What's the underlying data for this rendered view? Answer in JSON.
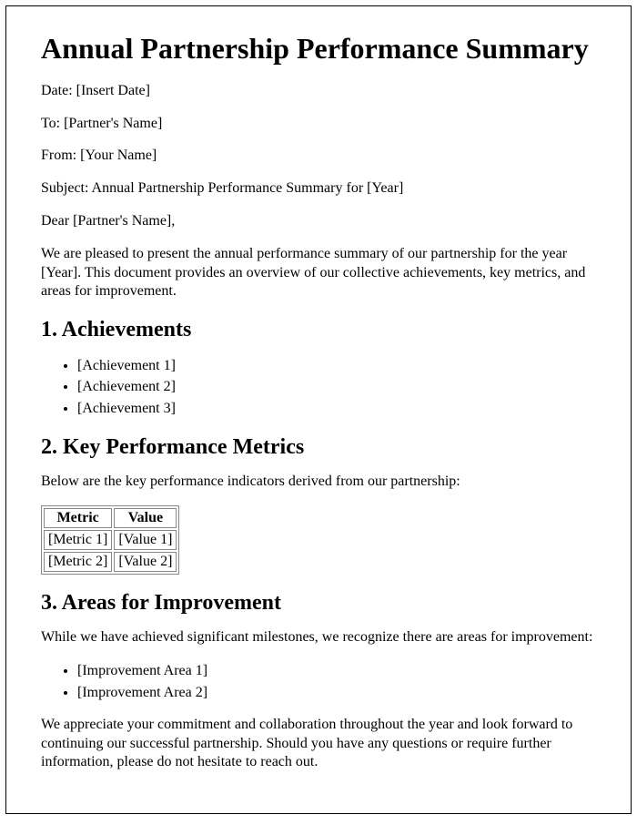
{
  "document": {
    "title": "Annual Partnership Performance Summary",
    "header": {
      "date_line": "Date: [Insert Date]",
      "to_line": "To: [Partner's Name]",
      "from_line": "From: [Your Name]",
      "subject_line": "Subject: Annual Partnership Performance Summary for [Year]",
      "salutation": "Dear [Partner's Name],"
    },
    "intro_paragraph": "We are pleased to present the annual performance summary of our partnership for the year [Year]. This document provides an overview of our collective achievements, key metrics, and areas for improvement.",
    "sections": {
      "achievements": {
        "heading": "1. Achievements",
        "items": [
          "[Achievement 1]",
          "[Achievement 2]",
          "[Achievement 3]"
        ]
      },
      "metrics": {
        "heading": "2. Key Performance Metrics",
        "intro": "Below are the key performance indicators derived from our partnership:",
        "table": {
          "columns": [
            "Metric",
            "Value"
          ],
          "rows": [
            [
              "[Metric 1]",
              "[Value 1]"
            ],
            [
              "[Metric 2]",
              "[Value 2]"
            ]
          ]
        }
      },
      "improvement": {
        "heading": "3. Areas for Improvement",
        "intro": "While we have achieved significant milestones, we recognize there are areas for improvement:",
        "items": [
          "[Improvement Area 1]",
          "[Improvement Area 2]"
        ]
      }
    },
    "closing_paragraph": "We appreciate your commitment and collaboration throughout the year and look forward to continuing our successful partnership. Should you have any questions or require further information, please do not hesitate to reach out."
  },
  "style": {
    "page_background": "#ffffff",
    "text_color": "#000000",
    "border_color": "#000000",
    "table_border_color": "#888888",
    "font_family": "Times New Roman",
    "h1_fontsize": 32,
    "h2_fontsize": 24,
    "body_fontsize": 16
  }
}
